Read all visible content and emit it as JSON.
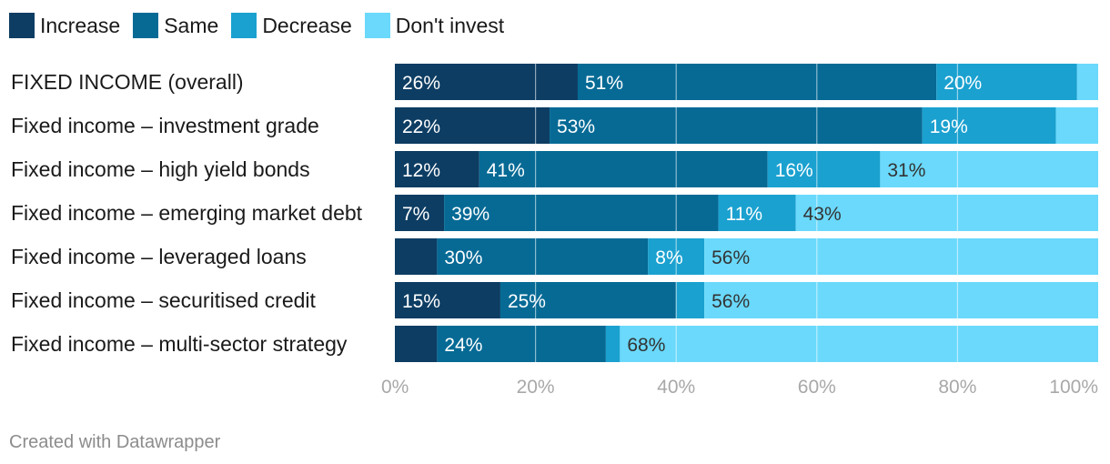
{
  "chart_data": {
    "type": "bar",
    "orientation": "horizontal",
    "stacked": true,
    "categories": [
      "FIXED INCOME (overall)",
      "Fixed income – investment grade",
      "Fixed income – high yield bonds",
      "Fixed income – emerging market debt",
      "Fixed income – leveraged loans",
      "Fixed income – securitised credit",
      "Fixed income – multi-sector strategy"
    ],
    "series": [
      {
        "name": "Increase",
        "color": "#0d3d63",
        "values": [
          26,
          22,
          12,
          7,
          6,
          15,
          6
        ],
        "labels": [
          "26%",
          "22%",
          "12%",
          "7%",
          "",
          "15%",
          ""
        ]
      },
      {
        "name": "Same",
        "color": "#066a95",
        "values": [
          51,
          53,
          41,
          39,
          30,
          25,
          24
        ],
        "labels": [
          "51%",
          "53%",
          "41%",
          "39%",
          "30%",
          "25%",
          "24%"
        ]
      },
      {
        "name": "Decrease",
        "color": "#1aa1d0",
        "values": [
          20,
          19,
          16,
          11,
          8,
          4,
          2
        ],
        "labels": [
          "20%",
          "19%",
          "16%",
          "11%",
          "8%",
          "",
          ""
        ]
      },
      {
        "name": "Don't invest",
        "color": "#6ad9fb",
        "values": [
          3,
          6,
          31,
          43,
          56,
          56,
          68
        ],
        "labels": [
          "",
          "",
          "31%",
          "43%",
          "56%",
          "56%",
          "68%"
        ]
      }
    ],
    "xlim": [
      0,
      100
    ],
    "x_ticks": [
      "0%",
      "20%",
      "40%",
      "60%",
      "80%",
      "100%"
    ],
    "grid": true,
    "legend_position": "top-left"
  },
  "footer": {
    "credit": "Created with Datawrapper"
  }
}
